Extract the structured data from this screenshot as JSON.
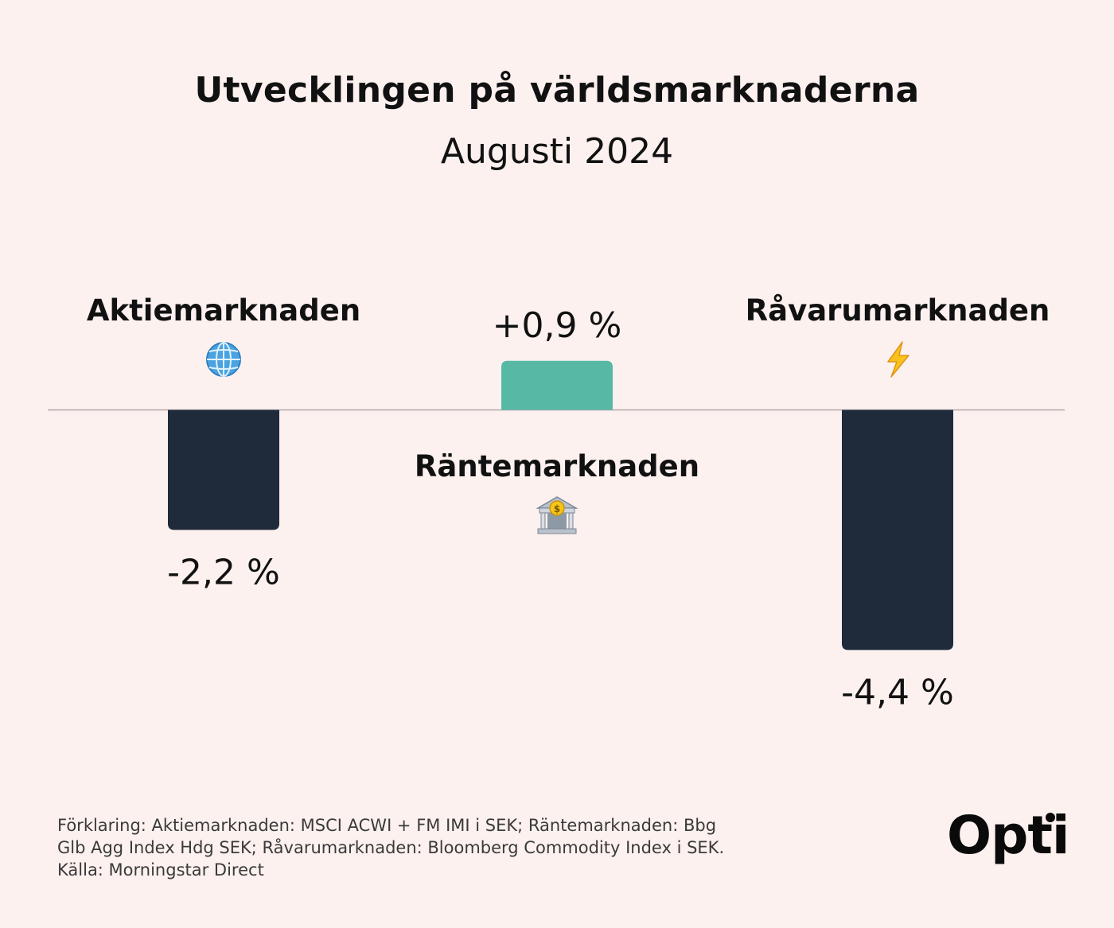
{
  "header": {
    "title": "Utvecklingen på världsmarknaderna",
    "subtitle": "Augusti 2024"
  },
  "chart_data": {
    "type": "bar",
    "title": "Utvecklingen på världsmarknaderna",
    "subtitle": "Augusti 2024",
    "categories": [
      "Aktiemarknaden",
      "Räntemarknaden",
      "Råvarumarknaden"
    ],
    "values": [
      -2.2,
      0.9,
      -4.4
    ],
    "value_labels": [
      "-2,2 %",
      "+0,9 %",
      "-4,4 %"
    ],
    "icons": [
      "globe-icon",
      "bank-icon",
      "lightning-icon"
    ],
    "colors": {
      "positive": "#57b9a5",
      "negative": "#1f2a3a",
      "axis": "#b0a8a8"
    },
    "xlabel": "",
    "ylabel": "",
    "ylim": [
      -5.0,
      1.0
    ],
    "grid": false
  },
  "footer": {
    "lines": [
      "Förklaring: Aktiemarknaden: MSCI ACWI + FM IMI i SEK; Räntemarknaden: Bbg",
      "Glb Agg Index Hdg SEK; Råvarumarknaden: Bloomberg Commodity Index i SEK.",
      "Källa: Morningstar Direct"
    ],
    "logo": "Opti"
  }
}
